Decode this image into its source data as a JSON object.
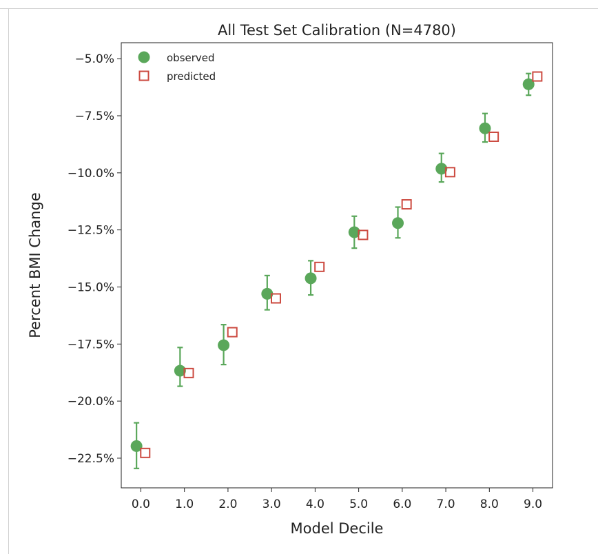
{
  "chart_data": {
    "type": "scatter",
    "title": "All Test Set Calibration (N=4780)",
    "xlabel": "Model Decile",
    "ylabel": "Percent BMI Change",
    "xlim": [
      -0.45,
      9.45
    ],
    "ylim": [
      -23.8,
      -4.3
    ],
    "x_ticks": [
      0,
      1,
      2,
      3,
      4,
      5,
      6,
      7,
      8,
      9
    ],
    "x_tick_labels": [
      "0.0",
      "1.0",
      "2.0",
      "3.0",
      "4.0",
      "5.0",
      "6.0",
      "7.0",
      "8.0",
      "9.0"
    ],
    "y_ticks": [
      -22.5,
      -20.0,
      -17.5,
      -15.0,
      -12.5,
      -10.0,
      -7.5,
      -5.0
    ],
    "y_tick_labels": [
      "−22.5%",
      "−20.0%",
      "−17.5%",
      "−15.0%",
      "−12.5%",
      "−10.0%",
      "−7.5%",
      "−5.0%"
    ],
    "grid": false,
    "legend_position": "top-left",
    "series": [
      {
        "name": "observed",
        "marker": "circle",
        "color": "#5aa75a",
        "x": [
          -0.1,
          0.9,
          1.9,
          2.9,
          3.9,
          4.9,
          5.9,
          6.9,
          7.9,
          8.9
        ],
        "y": [
          -21.97,
          -18.67,
          -17.55,
          -15.3,
          -14.62,
          -12.6,
          -12.2,
          -9.82,
          -8.05,
          -6.12
        ],
        "err_low": [
          -22.95,
          -19.35,
          -18.4,
          -16.0,
          -15.35,
          -13.3,
          -12.85,
          -10.4,
          -8.65,
          -6.6
        ],
        "err_high": [
          -20.95,
          -17.65,
          -16.65,
          -14.5,
          -13.85,
          -11.9,
          -11.5,
          -9.15,
          -7.4,
          -5.65
        ]
      },
      {
        "name": "predicted",
        "marker": "square-open",
        "color": "#cc4a40",
        "x": [
          0.1,
          1.1,
          2.1,
          3.1,
          4.1,
          5.1,
          6.1,
          7.1,
          8.1,
          9.1
        ],
        "y": [
          -22.27,
          -18.77,
          -16.98,
          -15.5,
          -14.12,
          -12.72,
          -11.38,
          -9.97,
          -8.42,
          -5.78
        ]
      }
    ]
  }
}
